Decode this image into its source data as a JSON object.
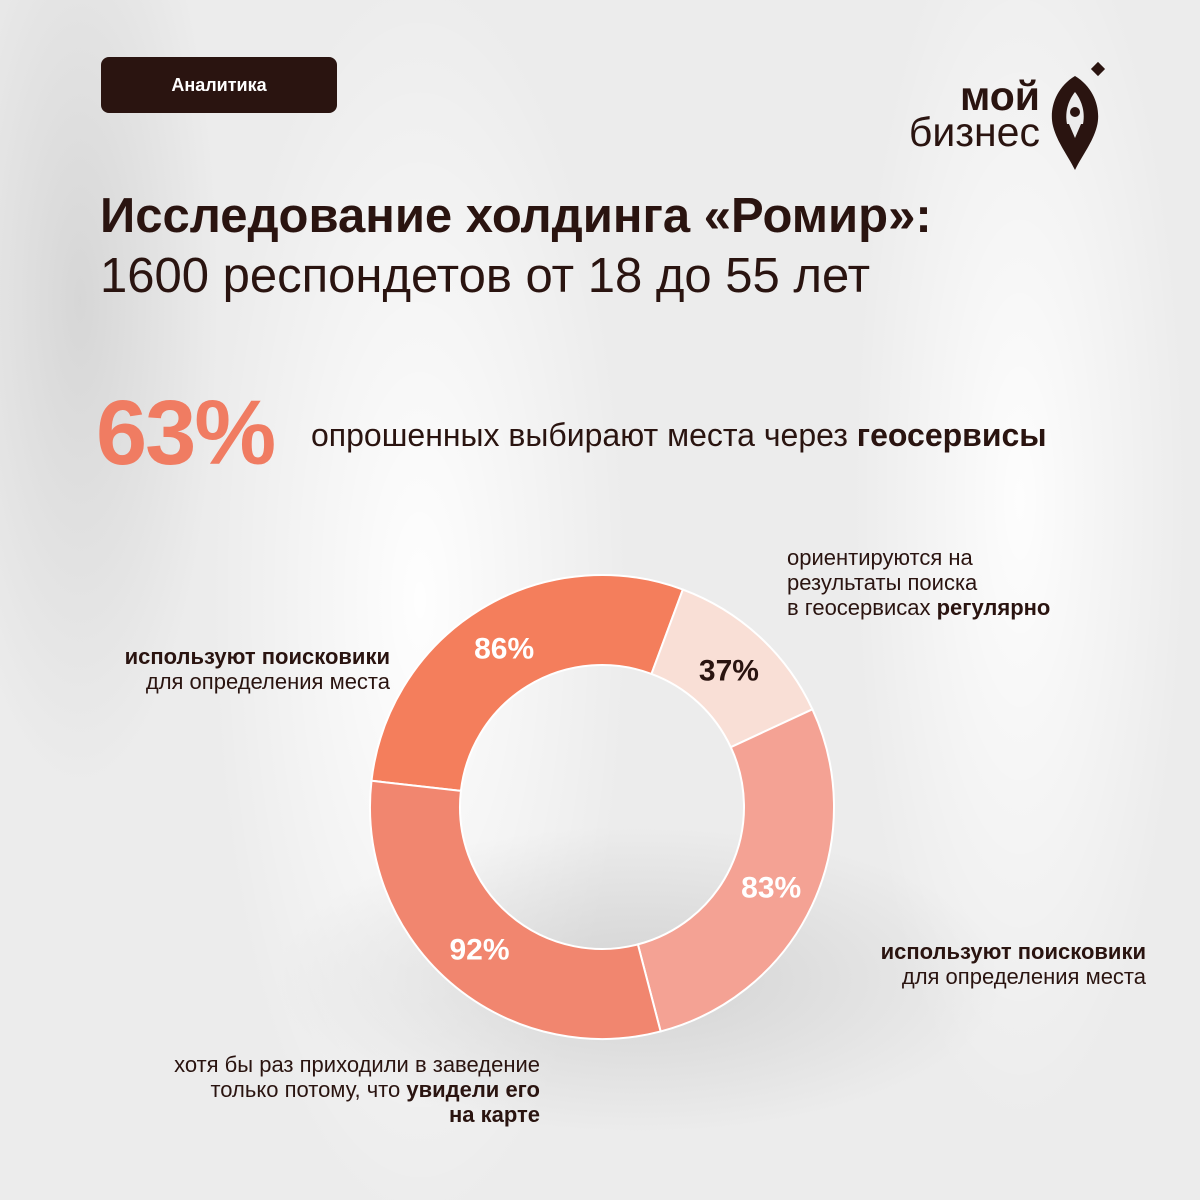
{
  "badge": "Аналитика",
  "logo": {
    "line1": "мой",
    "line2": "бизнес"
  },
  "title": {
    "line1": "Исследование холдинга «Ромир»:",
    "line2": "1600 респондетов от 18 до 55 лет"
  },
  "headline": {
    "value": "63%",
    "text": "опрошенных выбирают места через ",
    "text_bold": "геосервисы"
  },
  "colors": {
    "dark": "#2a1410",
    "accent": "#f07c62",
    "seg86": "#f47e5c",
    "seg37": "#f9dfd6",
    "seg83": "#f4a294",
    "seg92": "#f1866f"
  },
  "chart_data": {
    "type": "pie",
    "donut": true,
    "slices": [
      {
        "value": 86,
        "label": "86%",
        "caption_bold": "используют поисковики",
        "caption": "для определения места"
      },
      {
        "value": 37,
        "label": "37%",
        "caption_pre1": "ориентируются на",
        "caption_pre2": "результаты поиска",
        "caption_pre3": "в геосервисах ",
        "caption_bold": "регулярно"
      },
      {
        "value": 83,
        "label": "83%",
        "caption_bold": "используют поисковики",
        "caption": "для определения места"
      },
      {
        "value": 92,
        "label": "92%",
        "caption_pre1": "хотя бы раз приходили в заведение",
        "caption_pre2": "только потому, что ",
        "caption_bold1": "увидели его",
        "caption_bold2": "на карте"
      }
    ]
  }
}
